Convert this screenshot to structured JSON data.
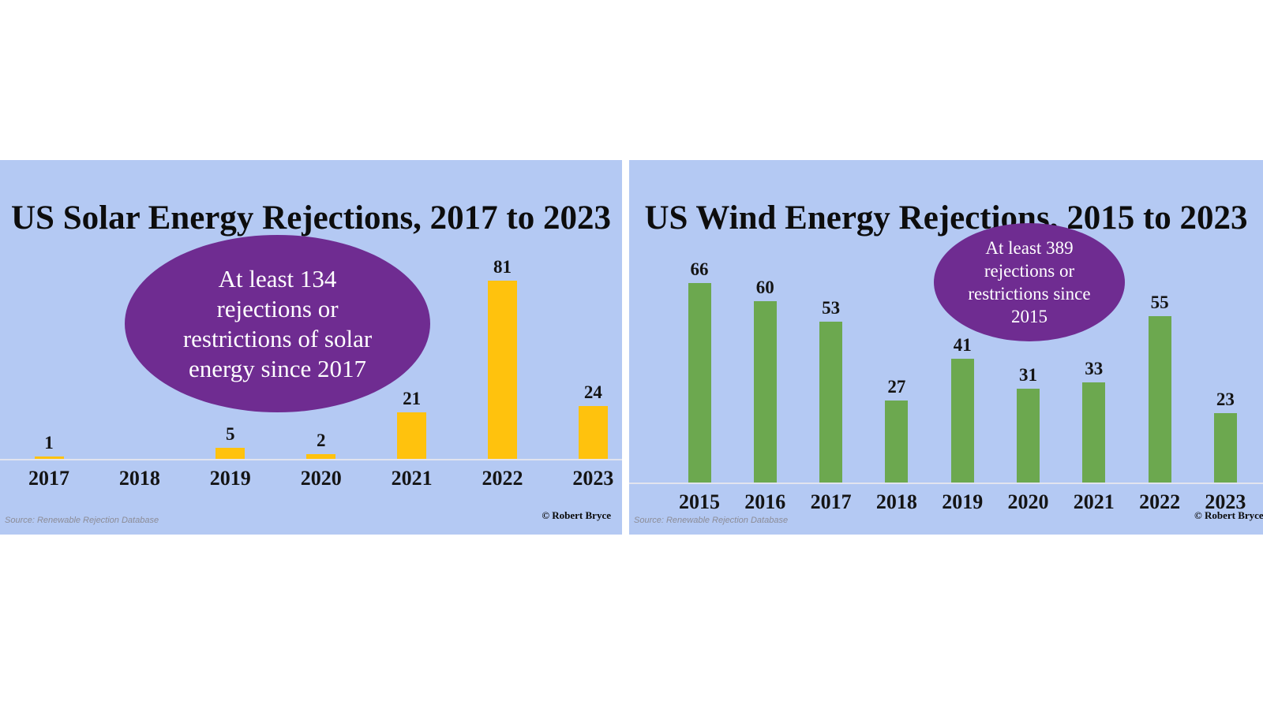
{
  "page": {
    "background": "#ffffff"
  },
  "chart_data": [
    {
      "type": "bar",
      "title": "US Solar Energy Rejections, 2017 to 2023",
      "categories": [
        "2017",
        "2018",
        "2019",
        "2020",
        "2021",
        "2022",
        "2023"
      ],
      "values": [
        1,
        0,
        5,
        2,
        21,
        81,
        24
      ],
      "xlabel": "",
      "ylabel": "",
      "ylim": [
        0,
        85
      ],
      "grid": false,
      "legend": "none",
      "annotation": {
        "lines": [
          "At least 134",
          "rejections or",
          "restrictions of solar",
          "energy since 2017"
        ]
      },
      "source": "Source: Renewable Rejection Database",
      "copyright": "© Robert Bryce",
      "colors": {
        "panel_bg": "#b4c9f3",
        "bar": "#ffc20d",
        "annotation_bg": "#6f2c91",
        "annotation_text": "#ffffff",
        "axis_line": "#e2e4ee",
        "label": "#141414",
        "source_text": "#8c8c96"
      }
    },
    {
      "type": "bar",
      "title": "US Wind Energy Rejections, 2015 to 2023",
      "categories": [
        "2015",
        "2016",
        "2017",
        "2018",
        "2019",
        "2020",
        "2021",
        "2022",
        "2023"
      ],
      "values": [
        66,
        60,
        53,
        27,
        41,
        31,
        33,
        55,
        23
      ],
      "xlabel": "",
      "ylabel": "",
      "ylim": [
        0,
        70
      ],
      "grid": false,
      "legend": "none",
      "annotation": {
        "lines": [
          "At least 389",
          "rejections or",
          "restrictions since",
          "2015"
        ]
      },
      "source": "Source: Renewable Rejection Database",
      "copyright": "© Robert Bryce",
      "colors": {
        "panel_bg": "#b4c9f3",
        "bar": "#6ca84f",
        "annotation_bg": "#6f2c91",
        "annotation_text": "#ffffff",
        "axis_line": "#e2e4ee",
        "label": "#141414",
        "source_text": "#8c8c96"
      }
    }
  ]
}
